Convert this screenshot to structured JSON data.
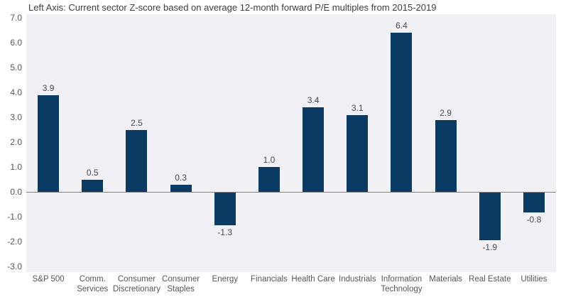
{
  "chart_data": {
    "type": "bar",
    "title": "Left Axis: Current sector Z-score based on average 12-month forward P/E multiples from 2015-2019",
    "categories": [
      "S&P 500",
      "Comm. Services",
      "Consumer Discretionary",
      "Consumer Staples",
      "Energy",
      "Financials",
      "Health Care",
      "Industrials",
      "Information Technology",
      "Materials",
      "Real Estate",
      "Utilities"
    ],
    "values": [
      3.9,
      0.5,
      2.5,
      0.3,
      -1.3,
      1.0,
      3.4,
      3.1,
      6.4,
      2.9,
      -1.9,
      -0.8
    ],
    "value_labels": [
      "3.9",
      "0.5",
      "2.5",
      "0.3",
      "-1.3",
      "1.0",
      "3.4",
      "3.1",
      "6.4",
      "2.9",
      "-1.9",
      "-0.8"
    ],
    "xlabel": "",
    "ylabel": "",
    "ylim": [
      -3.0,
      7.0
    ],
    "y_ticks": [
      "7.0",
      "6.0",
      "5.0",
      "4.0",
      "3.0",
      "2.0",
      "1.0",
      "0.0",
      "-1.0",
      "-2.0",
      "-3.0"
    ],
    "grid": false,
    "legend": "none",
    "bar_color": "#0b3a63",
    "plot_background": "#f1f1f5",
    "zero_line_color": "#858585"
  }
}
